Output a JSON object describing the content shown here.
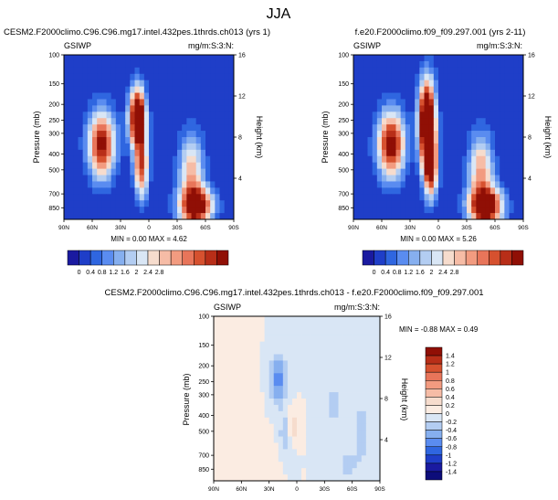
{
  "figure": {
    "title": "JJA"
  },
  "chart_data": [
    {
      "type": "heatmap",
      "id": "left",
      "title": "CESM2.F2000climo.C96.C96.mg17.intel.432pes.1thrds.ch013 (yrs 1)",
      "variable": "GSIWP",
      "units": "mg/m:S:3:N:",
      "ylabel": "Pressure (mb)",
      "ylabel_right": "Height (km)",
      "x_ticks": [
        "90N",
        "60N",
        "30N",
        "0",
        "30S",
        "60S",
        "90S"
      ],
      "x_range": [
        90,
        -90
      ],
      "y_ticks": [
        100,
        150,
        200,
        250,
        300,
        400,
        500,
        700,
        850
      ],
      "y_range": [
        1000,
        100
      ],
      "y_ticks_right": [
        16,
        12,
        8,
        4
      ],
      "min": 0.0,
      "max": 4.62,
      "stats_text": "MIN =  0.00  MAX =   4.62",
      "features": [
        {
          "lat": 50,
          "p": 350,
          "peak": 2.6,
          "sx": 10,
          "sy": 0.32
        },
        {
          "lat": 12,
          "p": 240,
          "peak": 3.6,
          "sx": 6,
          "sy": 0.28
        },
        {
          "lat": 8,
          "p": 480,
          "peak": 2.2,
          "sx": 5,
          "sy": 0.3
        },
        {
          "lat": -50,
          "p": 830,
          "peak": 3.0,
          "sx": 12,
          "sy": 0.18
        },
        {
          "lat": -45,
          "p": 500,
          "peak": 1.5,
          "sx": 9,
          "sy": 0.35
        }
      ]
    },
    {
      "type": "heatmap",
      "id": "right",
      "title": "f.e20.F2000climo.f09_f09.297.001 (yrs 2-11)",
      "variable": "GSIWP",
      "units": "mg/m:S:3:N:",
      "ylabel": "Pressure (mb)",
      "ylabel_right": "Height (km)",
      "x_ticks": [
        "90N",
        "60N",
        "30N",
        "0",
        "30S",
        "60S",
        "90S"
      ],
      "x_range": [
        90,
        -90
      ],
      "y_ticks": [
        100,
        150,
        200,
        250,
        300,
        400,
        500,
        700,
        850
      ],
      "y_range": [
        1000,
        100
      ],
      "y_ticks_right": [
        16,
        12,
        8,
        4
      ],
      "min": 0.0,
      "max": 5.26,
      "stats_text": "MIN =  0.00  MAX =   5.26",
      "features": [
        {
          "lat": 50,
          "p": 350,
          "peak": 2.7,
          "sx": 10,
          "sy": 0.32
        },
        {
          "lat": 12,
          "p": 260,
          "peak": 4.0,
          "sx": 6,
          "sy": 0.4
        },
        {
          "lat": 8,
          "p": 480,
          "peak": 2.4,
          "sx": 5,
          "sy": 0.3
        },
        {
          "lat": -50,
          "p": 830,
          "peak": 3.2,
          "sx": 12,
          "sy": 0.18
        },
        {
          "lat": -45,
          "p": 500,
          "peak": 1.6,
          "sx": 9,
          "sy": 0.35
        }
      ]
    },
    {
      "type": "heatmap",
      "id": "diff",
      "title": "CESM2.F2000climo.C96.C96.mg17.intel.432pes.1thrds.ch013 - f.e20.F2000climo.f09_f09.297.001",
      "variable": "GSIWP",
      "units": "mg/m:S:3:N:",
      "ylabel": "Pressure (mb)",
      "ylabel_right": "Height (km)",
      "x_ticks": [
        "90N",
        "60N",
        "30N",
        "0",
        "30S",
        "60S",
        "90S"
      ],
      "x_range": [
        90,
        -90
      ],
      "y_ticks": [
        100,
        150,
        200,
        250,
        300,
        400,
        500,
        700,
        850
      ],
      "y_range": [
        1000,
        100
      ],
      "y_ticks_right": [
        16,
        12,
        8,
        4
      ],
      "min": -0.88,
      "max": 0.49,
      "stats_text": "MIN = -0.88  MAX =   0.49",
      "features": [
        {
          "lat": 20,
          "p": 240,
          "peak": -0.7,
          "sx": 6,
          "sy": 0.25
        },
        {
          "lat": 5,
          "p": 460,
          "peak": 0.45,
          "sx": 4,
          "sy": 0.15
        },
        {
          "lat": 12,
          "p": 520,
          "peak": -0.4,
          "sx": 5,
          "sy": 0.2
        },
        {
          "lat": 62,
          "p": 300,
          "peak": 0.15,
          "sx": 10,
          "sy": 0.4
        },
        {
          "lat": -40,
          "p": 350,
          "peak": -0.25,
          "sx": 8,
          "sy": 0.35
        },
        {
          "lat": -70,
          "p": 500,
          "peak": -0.35,
          "sx": 6,
          "sy": 0.3
        },
        {
          "lat": -55,
          "p": 800,
          "peak": -0.25,
          "sx": 8,
          "sy": 0.15
        },
        {
          "lat": 35,
          "p": 700,
          "peak": 0.12,
          "sx": 10,
          "sy": 0.25
        }
      ]
    }
  ],
  "colorbars": {
    "main": {
      "labels": [
        "0",
        "0.4",
        "0.8",
        "1.2",
        "1.6",
        "2",
        "2.4",
        "2.8"
      ],
      "colors": [
        "#1a1aa0",
        "#1f3ec8",
        "#2f66e0",
        "#5a8cf0",
        "#86afef",
        "#b3cdf2",
        "#d9e6f5",
        "#f6dccd",
        "#f6bca6",
        "#f29b80",
        "#e8755a",
        "#d6512f",
        "#b82e18",
        "#900f05"
      ]
    },
    "diff": {
      "labels": [
        "1.4",
        "1.2",
        "1",
        "0.8",
        "0.6",
        "0.4",
        "0.2",
        "0",
        "-0.2",
        "-0.4",
        "-0.6",
        "-0.8",
        "-1",
        "-1.2",
        "-1.4"
      ],
      "colors": [
        "#900f05",
        "#b82e18",
        "#d6512f",
        "#e8755a",
        "#f29b80",
        "#f6bca6",
        "#f6dccd",
        "#fbece2",
        "#d9e6f5",
        "#b3cdf2",
        "#86afef",
        "#5a8cf0",
        "#2f66e0",
        "#1f3ec8",
        "#1a1aa0",
        "#0d0d7a"
      ]
    }
  }
}
